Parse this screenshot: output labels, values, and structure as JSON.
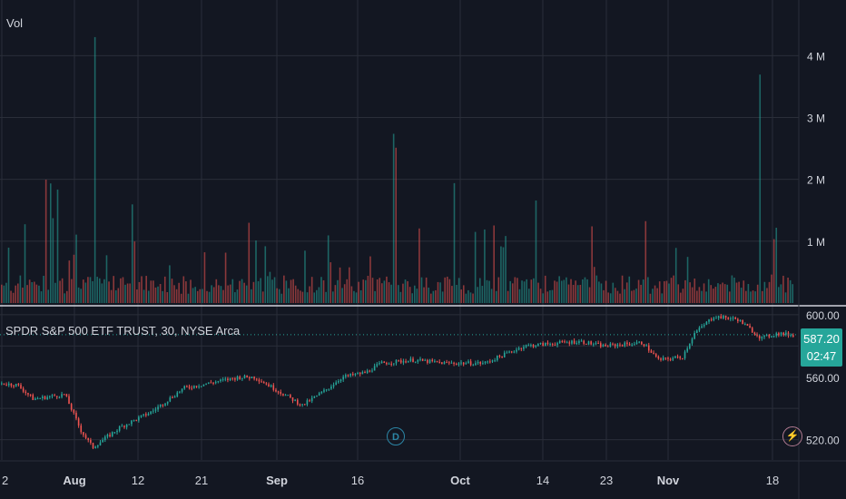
{
  "chart_data": [
    {
      "type": "bar",
      "title": "Vol",
      "series_name": "Vol",
      "y_ticks": [
        "1 M",
        "2 M",
        "3 M",
        "4 M"
      ],
      "ylim": [
        0,
        4900000
      ],
      "colors": {
        "up": "#26a69a",
        "down": "#ef5350"
      }
    },
    {
      "type": "candlestick",
      "title": "SPDR S&P 500 ETF TRUST, 30, NYSE Arca",
      "y_ticks": [
        "520.00",
        "560.00",
        "600.00"
      ],
      "ylim": [
        507,
        604
      ],
      "last_price": "587.20",
      "countdown": "02:47",
      "x_ticks": [
        "2",
        "Aug",
        "12",
        "21",
        "Sep",
        "16",
        "Oct",
        "14",
        "23",
        "Nov",
        "18"
      ],
      "trend": [
        {
          "x": 0.0,
          "y": 556
        },
        {
          "x": 0.02,
          "y": 555
        },
        {
          "x": 0.04,
          "y": 546
        },
        {
          "x": 0.08,
          "y": 549
        },
        {
          "x": 0.1,
          "y": 526
        },
        {
          "x": 0.115,
          "y": 515
        },
        {
          "x": 0.15,
          "y": 528
        },
        {
          "x": 0.19,
          "y": 538
        },
        {
          "x": 0.23,
          "y": 553
        },
        {
          "x": 0.3,
          "y": 560
        },
        {
          "x": 0.32,
          "y": 560
        },
        {
          "x": 0.35,
          "y": 551
        },
        {
          "x": 0.38,
          "y": 542
        },
        {
          "x": 0.41,
          "y": 552
        },
        {
          "x": 0.43,
          "y": 560
        },
        {
          "x": 0.46,
          "y": 563
        },
        {
          "x": 0.48,
          "y": 569
        },
        {
          "x": 0.52,
          "y": 571
        },
        {
          "x": 0.56,
          "y": 569
        },
        {
          "x": 0.61,
          "y": 569
        },
        {
          "x": 0.66,
          "y": 580
        },
        {
          "x": 0.73,
          "y": 583
        },
        {
          "x": 0.76,
          "y": 580
        },
        {
          "x": 0.81,
          "y": 582
        },
        {
          "x": 0.83,
          "y": 571
        },
        {
          "x": 0.86,
          "y": 573
        },
        {
          "x": 0.875,
          "y": 588
        },
        {
          "x": 0.9,
          "y": 599
        },
        {
          "x": 0.93,
          "y": 597
        },
        {
          "x": 0.96,
          "y": 585
        },
        {
          "x": 0.98,
          "y": 588
        },
        {
          "x": 1.0,
          "y": 587
        }
      ],
      "colors": {
        "up": "#26a69a",
        "down": "#ef5350"
      }
    }
  ]
}
